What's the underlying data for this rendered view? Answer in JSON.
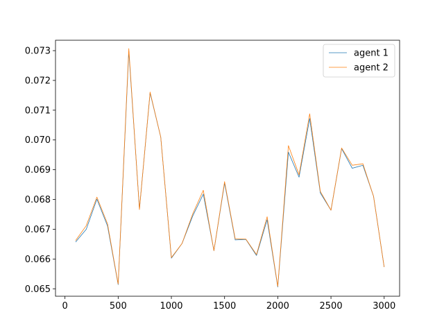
{
  "chart_data": {
    "type": "line",
    "title": "",
    "xlabel": "",
    "ylabel": "",
    "xlim": [
      -89,
      3145
    ],
    "ylim": [
      0.06475,
      0.07335
    ],
    "xticks": [
      0,
      500,
      1000,
      1500,
      2000,
      2500,
      3000
    ],
    "yticks": [
      0.065,
      0.066,
      0.067,
      0.068,
      0.069,
      0.07,
      0.071,
      0.072,
      0.073
    ],
    "ytick_labels": [
      "0.065",
      "0.066",
      "0.067",
      "0.068",
      "0.069",
      "0.070",
      "0.071",
      "0.072",
      "0.073"
    ],
    "grid": false,
    "legend_position": "top-right",
    "x": [
      100,
      200,
      300,
      400,
      500,
      600,
      700,
      800,
      900,
      1000,
      1100,
      1200,
      1300,
      1400,
      1500,
      1600,
      1700,
      1800,
      1900,
      2000,
      2100,
      2200,
      2300,
      2400,
      2500,
      2600,
      2700,
      2800,
      2900,
      3000
    ],
    "series": [
      {
        "name": "agent 1",
        "color": "#1f77b4",
        "values": [
          0.06657,
          0.067,
          0.06801,
          0.06711,
          0.06514,
          0.07298,
          0.06768,
          0.07158,
          0.0701,
          0.06603,
          0.06652,
          0.06744,
          0.06818,
          0.06628,
          0.06855,
          0.06664,
          0.06666,
          0.06612,
          0.06732,
          0.06506,
          0.06959,
          0.06875,
          0.07072,
          0.06822,
          0.06764,
          0.06971,
          0.06905,
          0.06915,
          0.06811,
          0.06573
        ]
      },
      {
        "name": "agent 2",
        "color": "#ff7f0e",
        "values": [
          0.06662,
          0.06712,
          0.06808,
          0.06718,
          0.06516,
          0.07307,
          0.06766,
          0.07161,
          0.0701,
          0.06605,
          0.06652,
          0.06751,
          0.06831,
          0.06628,
          0.0686,
          0.06668,
          0.06667,
          0.06615,
          0.06742,
          0.06508,
          0.06981,
          0.06883,
          0.07088,
          0.06827,
          0.06764,
          0.06973,
          0.06915,
          0.0692,
          0.06811,
          0.06573
        ]
      }
    ]
  }
}
